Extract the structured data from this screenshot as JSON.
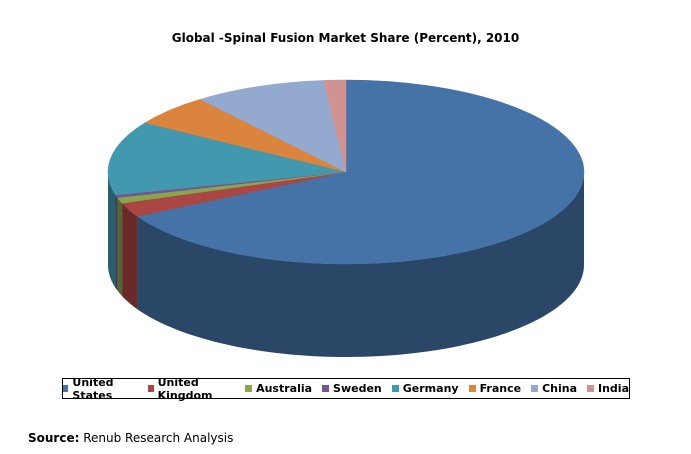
{
  "chart_data": {
    "type": "pie3d",
    "title": "Global -Spinal Fusion Market Share (Percent), 2010",
    "categories": [
      "United States",
      "United Kingdom",
      "Australia",
      "Sweden",
      "Germany",
      "France",
      "China",
      "India"
    ],
    "values": [
      67,
      2.5,
      1,
      0.5,
      13,
      5.5,
      9,
      1.5
    ],
    "colors": [
      "#4572a7",
      "#aa4643",
      "#89a54e",
      "#71588f",
      "#4198af",
      "#db843d",
      "#93a9cf",
      "#d19392"
    ],
    "source_label": "Source:",
    "source": "Renub Research Analysis"
  }
}
